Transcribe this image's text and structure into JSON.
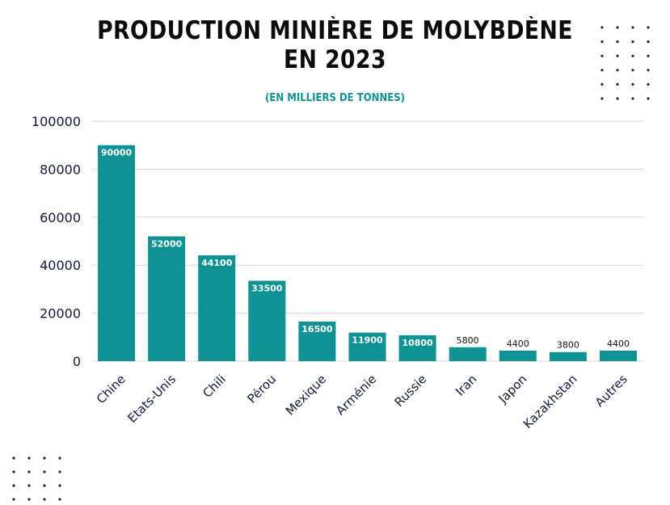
{
  "chart_data": {
    "type": "bar",
    "title_line1": "PRODUCTION MINIÈRE DE MOLYBDÈNE",
    "title_line2": "EN 2023",
    "subtitle": "(EN MILLIERS DE TONNES)",
    "categories": [
      "Chine",
      "Etats-Unis",
      "Chili",
      "Pérou",
      "Mexique",
      "Arménie",
      "Russie",
      "Iran",
      "Japon",
      "Kazakhstan",
      "Autres"
    ],
    "values": [
      90000,
      52000,
      44100,
      33500,
      16500,
      11900,
      10800,
      5800,
      4400,
      3800,
      4400
    ],
    "yticks": [
      "0",
      "20000",
      "40000",
      "60000",
      "80000",
      "100000"
    ],
    "ylim": [
      0,
      100000
    ],
    "grid": true,
    "xlabel": "",
    "ylabel": "",
    "bar_color": "#0e9294"
  }
}
